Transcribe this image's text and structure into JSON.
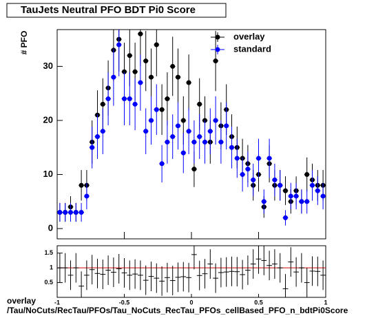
{
  "chart_data": [
    {
      "type": "errorpoints",
      "title": "TauJets Neutral PFO BDT Pi0 Score",
      "y_label": "# PFO",
      "x": [
        -0.98,
        -0.94,
        -0.9,
        -0.86,
        -0.82,
        -0.78,
        -0.74,
        -0.7,
        -0.66,
        -0.62,
        -0.58,
        -0.54,
        -0.5,
        -0.46,
        -0.42,
        -0.38,
        -0.34,
        -0.3,
        -0.26,
        -0.22,
        -0.18,
        -0.14,
        -0.1,
        -0.06,
        -0.02,
        0.02,
        0.06,
        0.1,
        0.14,
        0.18,
        0.22,
        0.26,
        0.3,
        0.34,
        0.38,
        0.42,
        0.46,
        0.5,
        0.54,
        0.58,
        0.62,
        0.66,
        0.7,
        0.74,
        0.78,
        0.82,
        0.86,
        0.9,
        0.94,
        0.98
      ],
      "series": [
        {
          "name": "overlay",
          "color": "#000000",
          "values": [
            3,
            3,
            4,
            3,
            8,
            8,
            16,
            21,
            23,
            26,
            33,
            35,
            29,
            32,
            29,
            36,
            31,
            28,
            34,
            22,
            24,
            30,
            28,
            20,
            27,
            11,
            23,
            20,
            16,
            31,
            19,
            22,
            17,
            15,
            13,
            12,
            8,
            10,
            4,
            12,
            8,
            8,
            7,
            5,
            7,
            5,
            10,
            9,
            8,
            8
          ]
        },
        {
          "name": "standard",
          "color": "#0000ff",
          "values": [
            3,
            3,
            3,
            3,
            3,
            6,
            15,
            17,
            18,
            24,
            28,
            34,
            24,
            24,
            23,
            27,
            18,
            20,
            22,
            12,
            16,
            17,
            19,
            14,
            18,
            16,
            17,
            16,
            18,
            20,
            16,
            19,
            15,
            13,
            10,
            11,
            9,
            13,
            5,
            13,
            9,
            8,
            2,
            6,
            6,
            5,
            5,
            8,
            7,
            6
          ]
        }
      ],
      "xlim": [
        -1,
        1
      ],
      "xticks": [
        -1,
        -0.5,
        0,
        0.5,
        1
      ],
      "ylim": [
        -1.9,
        36.8
      ],
      "yticks": [
        0,
        10,
        20,
        30
      ],
      "legend": "top-right"
    },
    {
      "type": "ratio",
      "x_label": "overlay",
      "x_label2": "/Tau/NoCuts/RecTau/PFOs/Tau_NoCuts_RecTau_PFOs_cellBased_PFO_n_bdtPi0Score",
      "values": [
        1.0,
        1.0,
        0.75,
        1.0,
        0.38,
        0.75,
        0.94,
        0.81,
        0.78,
        0.92,
        0.85,
        0.97,
        0.83,
        0.75,
        0.79,
        0.75,
        0.58,
        0.71,
        0.65,
        0.55,
        0.67,
        0.57,
        0.68,
        0.7,
        0.67,
        1.45,
        0.74,
        0.8,
        1.13,
        0.65,
        0.84,
        0.86,
        0.88,
        0.87,
        0.77,
        0.92,
        1.13,
        1.3,
        1.25,
        1.08,
        1.13,
        1.0,
        0.29,
        1.2,
        0.86,
        1.0,
        0.5,
        0.89,
        0.88,
        0.75
      ],
      "reference_line": 1,
      "reference_color": "#cc0000",
      "xlim": [
        -1,
        1
      ],
      "xticks": [
        -1,
        -0.5,
        0,
        0.5,
        1
      ],
      "ylim": [
        0,
        1.75
      ],
      "yticks": [
        0.5,
        1,
        1.5
      ]
    }
  ]
}
